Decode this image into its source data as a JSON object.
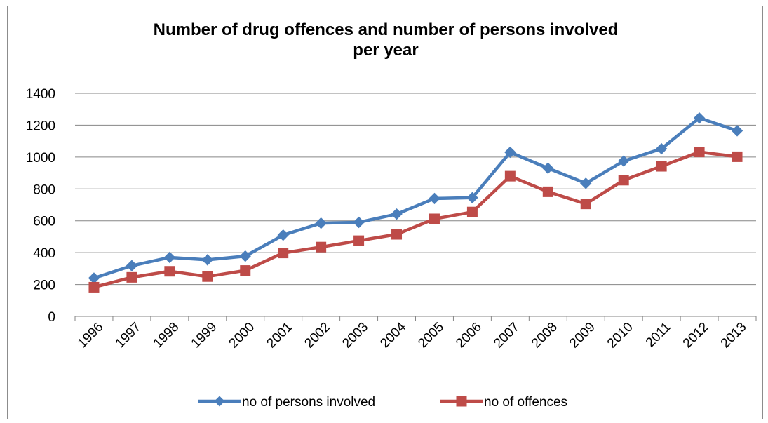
{
  "chart_data": {
    "type": "line",
    "title": "Number of drug offences and number of persons involved per year",
    "title_lines": [
      "Number of drug offences and number of persons involved",
      "per year"
    ],
    "xlabel": "",
    "ylabel": "",
    "ylim": [
      0,
      1400
    ],
    "yticks": [
      0,
      200,
      400,
      600,
      800,
      1000,
      1200,
      1400
    ],
    "categories": [
      "1996",
      "1997",
      "1998",
      "1999",
      "2000",
      "2001",
      "2002",
      "2003",
      "2004",
      "2005",
      "2006",
      "2007",
      "2008",
      "2009",
      "2010",
      "2011",
      "2012",
      "2013"
    ],
    "grid": true,
    "legend_position": "bottom",
    "series": [
      {
        "name": "no of persons involved",
        "color": "#4a7ebb",
        "marker": "diamond",
        "values": [
          240,
          318,
          370,
          355,
          378,
          510,
          585,
          590,
          642,
          740,
          745,
          1030,
          930,
          835,
          975,
          1052,
          1245,
          1165
        ]
      },
      {
        "name": "no of offences",
        "color": "#be4b48",
        "marker": "square",
        "values": [
          183,
          245,
          283,
          250,
          288,
          398,
          435,
          475,
          515,
          612,
          655,
          880,
          782,
          706,
          855,
          942,
          1032,
          1002
        ]
      }
    ]
  }
}
